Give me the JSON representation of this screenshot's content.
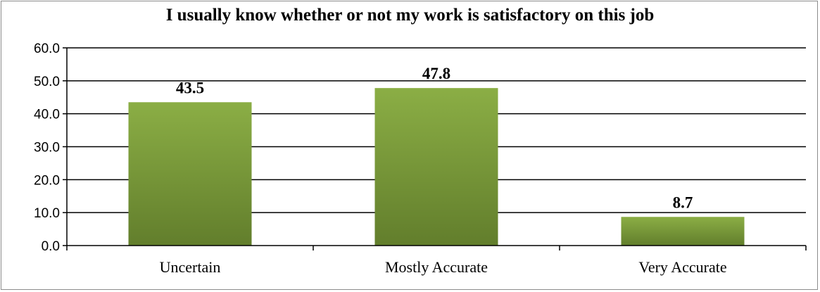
{
  "chart_data": {
    "type": "bar",
    "title": "I usually know whether or not my work is satisfactory on this job",
    "categories": [
      "Uncertain",
      "Mostly Accurate",
      "Very Accurate"
    ],
    "values": [
      43.5,
      47.8,
      8.7
    ],
    "data_labels": [
      "43.5",
      "47.8",
      "8.7"
    ],
    "xlabel": "",
    "ylabel": "",
    "ylim": [
      0,
      60
    ],
    "yticks": [
      0,
      10,
      20,
      30,
      40,
      50,
      60
    ],
    "ytick_labels": [
      "0.0",
      "10.0",
      "20.0",
      "30.0",
      "40.0",
      "50.0",
      "60.0"
    ],
    "grid": true,
    "legend": "none",
    "bar_color_top": "#8bae45",
    "bar_color_bottom": "#627e2c"
  }
}
